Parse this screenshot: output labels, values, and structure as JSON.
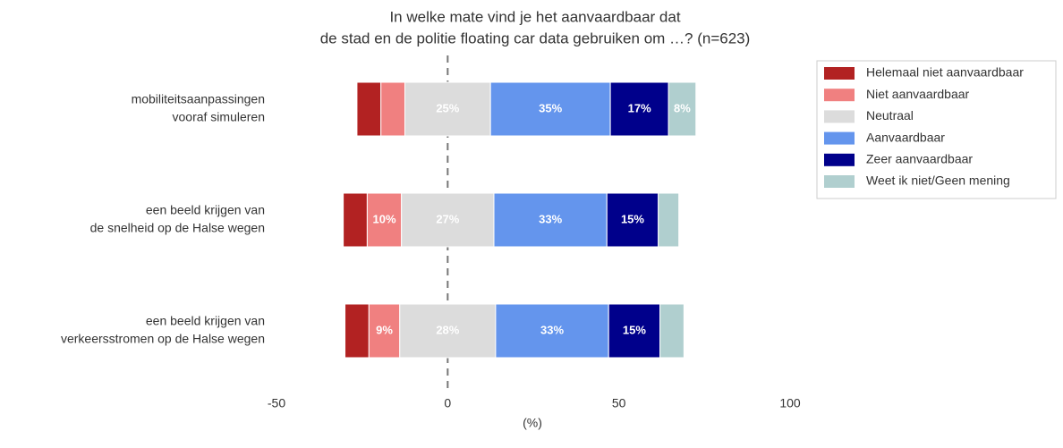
{
  "chart_data": {
    "type": "diverging_bar",
    "title": [
      "In welke mate vind je het aanvaardbaar dat",
      "de stad en de politie floating car data gebruiken om …? (n=623)"
    ],
    "xlabel": "(%)",
    "categories": [
      [
        "mobiliteitsaanpassingen",
        "vooraf simuleren"
      ],
      [
        "een beeld krijgen van",
        "de snelheid op de Halse wegen"
      ],
      [
        "een beeld krijgen van",
        "verkeersstromen op de Halse wegen"
      ]
    ],
    "series": [
      {
        "name": "Helemaal niet aanvaardbaar",
        "color": "#b22222",
        "values": [
          7,
          7,
          7
        ],
        "value_labels": [
          null,
          null,
          null
        ]
      },
      {
        "name": "Niet aanvaardbaar",
        "color": "#f08080",
        "values": [
          7,
          10,
          9
        ],
        "value_labels": [
          null,
          "10%",
          "9%"
        ]
      },
      {
        "name": "Neutraal",
        "color": "#dcdcdc",
        "values": [
          25,
          27,
          28
        ],
        "value_labels": [
          "25%",
          "27%",
          "28%"
        ]
      },
      {
        "name": "Aanvaardbaar",
        "color": "#6495ed",
        "values": [
          35,
          33,
          33
        ],
        "value_labels": [
          "35%",
          "33%",
          "33%"
        ]
      },
      {
        "name": "Zeer aanvaardbaar",
        "color": "#00008b",
        "values": [
          17,
          15,
          15
        ],
        "value_labels": [
          "17%",
          "15%",
          "15%"
        ]
      },
      {
        "name": "Weet ik niet/Geen mening",
        "color": "#b0cfcf",
        "values": [
          8,
          6,
          7
        ],
        "value_labels": [
          "8%",
          null,
          null
        ]
      }
    ],
    "xlim": [
      -50,
      100
    ],
    "xticks": [
      -50,
      0,
      50,
      100
    ],
    "legend": "upper right"
  }
}
